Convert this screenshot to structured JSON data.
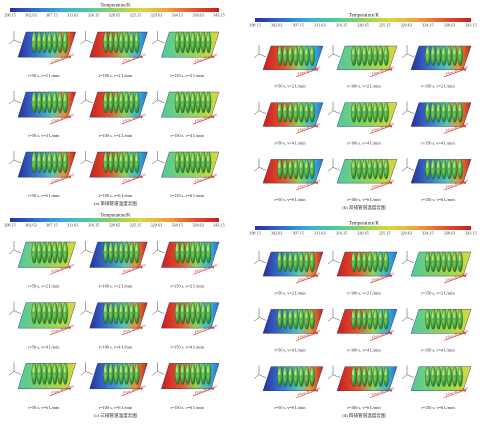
{
  "colorbar_stops": [
    "#2b2f9b",
    "#2f6fd0",
    "#36b0d8",
    "#4fc9a0",
    "#8fd35a",
    "#d9d93a",
    "#f0a33a",
    "#e6542f",
    "#c81e1e"
  ],
  "arrow_color": "#d0312d",
  "flow_label": "Flow direction",
  "panels": [
    {
      "id": "a",
      "colorbar": {
        "title": "Temperature/K",
        "ticks": [
          "298.15",
          "302.63",
          "307.15",
          "311.63",
          "316.15",
          "320.65",
          "325.15",
          "329.63",
          "334.15",
          "338.63",
          "343.15"
        ]
      },
      "captions": [
        "t=50 s, v=2 L/min",
        "t=100 s, v=2 L/min",
        "t=150 s, v=2 L/min",
        "t=50 s, v=4 L/min",
        "t=100 s, v=4 L/min",
        "t=150 s, v=4 L/min",
        "t=50 s, v=6 L/min",
        "t=100 s, v=6 L/min",
        "t=150 s, v=6 L/min"
      ],
      "bottom_label": "(a) 单排管道温度云图"
    },
    {
      "id": "b",
      "colorbar": {
        "title": "Temperature/K",
        "ticks": [
          "298.15",
          "302.63",
          "307.15",
          "311.63",
          "316.15",
          "320.65",
          "325.15",
          "329.63",
          "334.15",
          "338.63",
          "343.15"
        ]
      },
      "captions": [
        "t=50 s, v=2 L/min",
        "t=100 s, v=2 L/min",
        "t=150 s, v=2 L/min",
        "t=50 s, v=4 L/min",
        "t=100 s, v=4 L/min",
        "t=150 s, v=4 L/min",
        "t=50 s, v=6 L/min",
        "t=100 s, v=6 L/min",
        "t=150 s, v=6 L/min"
      ],
      "bottom_label": "(b) 双排管道温度云图"
    },
    {
      "id": "c",
      "colorbar": {
        "title": "Temperature/K",
        "ticks": [
          "298.15",
          "302.63",
          "307.15",
          "311.63",
          "316.15",
          "320.65",
          "325.15",
          "329.63",
          "334.15",
          "338.63",
          "343.15"
        ]
      },
      "captions": [
        "t=50 s, v=2 L/min",
        "t=100 s, v=2 L/min",
        "t=150 s, v=2 L/min",
        "t=50 s, v=4 L/min",
        "t=100 s, v=4 L/min",
        "t=150 s, v=4 L/min",
        "t=50 s, v=6 L/min",
        "t=100 s, v=6 L/min",
        "t=150 s, v=6 L/min"
      ],
      "bottom_label": "(c) 三排管道温度云图"
    },
    {
      "id": "d",
      "colorbar": {
        "title": "Temperature/K",
        "ticks": [
          "298.15",
          "302.63",
          "307.15",
          "311.63",
          "316.15",
          "320.65",
          "325.15",
          "329.63",
          "334.15",
          "338.63",
          "343.15"
        ]
      },
      "captions": [
        "t=50 s, v=2 L/min",
        "t=100 s, v=2 L/min",
        "t=150 s, v=2 L/min",
        "t=50 s, v=4 L/min",
        "t=100 s, v=4 L/min",
        "t=150 s, v=4 L/min",
        "t=50 s, v=6 L/min",
        "t=100 s, v=6 L/min",
        "t=150 s, v=6 L/min"
      ],
      "bottom_label": "(d) 四排管道温度云图"
    }
  ]
}
